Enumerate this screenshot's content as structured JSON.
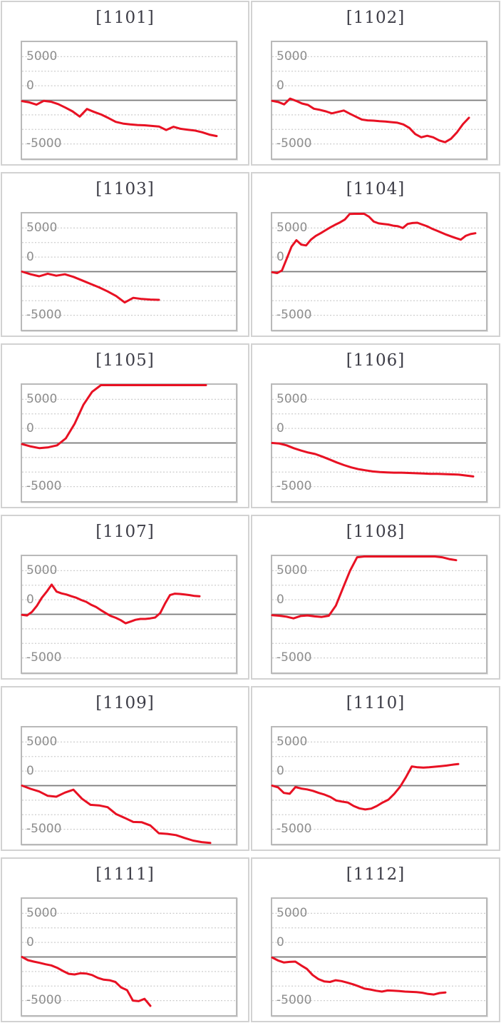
{
  "page": {
    "background": "#ffffff",
    "description": "grid of 12 machine payout line charts"
  },
  "colors": {
    "series_line": "#e81123",
    "zero_line": "#7a7a7a",
    "grid_line": "#cdcdcd",
    "plot_border": "#b9b9b9",
    "cell_border": "#d2d2d2",
    "title_text": "#3c3c46",
    "axis_label_text": "#8d8d8d"
  },
  "chart_data": {
    "type": "line",
    "common_axis": {
      "ylim": [
        -10000,
        10000
      ],
      "grid_step": 2500,
      "grid_style": "dotted",
      "zero_line": true,
      "tick_labels": [
        "5000",
        "0",
        "-5000"
      ],
      "tick_values": [
        5000,
        0,
        -5000
      ],
      "legend": "none",
      "xlabel": "",
      "ylabel": ""
    },
    "charts": [
      {
        "title": "[1101]",
        "x_end": 0.91,
        "values": [
          -150,
          -350,
          -750,
          -100,
          -250,
          -650,
          -1250,
          -1900,
          -2800,
          -1500,
          -2000,
          -2450,
          -3050,
          -3700,
          -4000,
          -4150,
          -4250,
          -4300,
          -4400,
          -4500,
          -5100,
          -4550,
          -4900,
          -5050,
          -5200,
          -5500,
          -5900,
          -6150
        ]
      },
      {
        "title": "[1102]",
        "x_end": 0.92,
        "values": [
          -100,
          -300,
          -700,
          300,
          -100,
          -550,
          -800,
          -1450,
          -1650,
          -1900,
          -2250,
          -2000,
          -1750,
          -2300,
          -2800,
          -3300,
          -3450,
          -3500,
          -3600,
          -3650,
          -3750,
          -3850,
          -4150,
          -4750,
          -5800,
          -6350,
          -6100,
          -6350,
          -6900,
          -7200,
          -6600,
          -5500,
          -4100,
          -3000
        ]
      },
      {
        "title": "[1103]",
        "x_end": 0.64,
        "values": [
          0,
          -450,
          -800,
          -350,
          -700,
          -450,
          -900,
          -1500,
          -2100,
          -2700,
          -3400,
          -4200,
          -5300,
          -4500,
          -4700,
          -4800,
          -4850
        ]
      },
      {
        "title": "[1104]",
        "x_end": 0.95,
        "values": [
          -100,
          -250,
          200,
          2250,
          4300,
          5400,
          4650,
          4500,
          5500,
          6150,
          6600,
          7100,
          7600,
          8050,
          8450,
          8950,
          9900,
          10200,
          10100,
          9950,
          9450,
          8600,
          8300,
          8200,
          8100,
          7900,
          7800,
          7500,
          8200,
          8350,
          8400,
          8100,
          7800,
          7400,
          7050,
          6700,
          6350,
          6050,
          5750,
          5500,
          6150,
          6450,
          6600
        ]
      },
      {
        "title": "[1105]",
        "x_end": 0.86,
        "values": [
          -200,
          -600,
          -900,
          -750,
          -400,
          800,
          3300,
          6550,
          8800,
          11000,
          12500,
          13000,
          12800,
          13000,
          12900,
          13000,
          13000,
          12900,
          13000,
          12950,
          13000,
          12900
        ]
      },
      {
        "title": "[1106]",
        "x_end": 0.94,
        "values": [
          0,
          -100,
          -400,
          -900,
          -1300,
          -1650,
          -1900,
          -2350,
          -2850,
          -3350,
          -3800,
          -4200,
          -4500,
          -4700,
          -4900,
          -5000,
          -5050,
          -5100,
          -5100,
          -5150,
          -5200,
          -5250,
          -5300,
          -5300,
          -5350,
          -5400,
          -5450,
          -5600,
          -5750
        ]
      },
      {
        "title": "[1107]",
        "x_end": 0.83,
        "values": [
          -100,
          -200,
          400,
          1450,
          2850,
          3900,
          5100,
          3900,
          3600,
          3400,
          3100,
          2850,
          2450,
          2150,
          1650,
          1250,
          700,
          200,
          -300,
          -600,
          -1000,
          -1550,
          -1250,
          -950,
          -800,
          -800,
          -700,
          -550,
          200,
          1850,
          3300,
          3550,
          3500,
          3400,
          3300,
          3150,
          3100
        ]
      },
      {
        "title": "[1108]",
        "x_end": 0.86,
        "values": [
          -150,
          -250,
          -400,
          -700,
          -300,
          -200,
          -350,
          -450,
          -250,
          1500,
          4500,
          7500,
          9800,
          10800,
          11000,
          11200,
          11000,
          11100,
          11050,
          11000,
          11000,
          10900,
          10700,
          10400,
          9800,
          9500,
          9300
        ]
      },
      {
        "title": "[1109]",
        "x_end": 0.88,
        "values": [
          0,
          -550,
          -1000,
          -1750,
          -1900,
          -1200,
          -700,
          -2250,
          -3300,
          -3400,
          -3700,
          -4900,
          -5550,
          -6250,
          -6300,
          -6850,
          -8200,
          -8300,
          -8500,
          -9000,
          -9450,
          -9700,
          -9850
        ]
      },
      {
        "title": "[1110]",
        "x_end": 0.87,
        "values": [
          0,
          -300,
          -1250,
          -1400,
          -250,
          -500,
          -650,
          -900,
          -1250,
          -1550,
          -1950,
          -2550,
          -2750,
          -2900,
          -3500,
          -3900,
          -4100,
          -3950,
          -3500,
          -2900,
          -2400,
          -1400,
          -200,
          1450,
          3300,
          3150,
          3100,
          3150,
          3250,
          3350,
          3450,
          3600,
          3700
        ]
      },
      {
        "title": "[1111]",
        "x_end": 0.6,
        "values": [
          0,
          -550,
          -800,
          -1000,
          -1250,
          -1450,
          -1850,
          -2400,
          -2900,
          -3000,
          -2800,
          -2850,
          -3100,
          -3600,
          -3900,
          -4000,
          -4300,
          -5250,
          -5700,
          -7500,
          -7600,
          -7200,
          -8400
        ]
      },
      {
        "title": "[1112]",
        "x_end": 0.81,
        "values": [
          -100,
          -600,
          -950,
          -850,
          -800,
          -1450,
          -2050,
          -3100,
          -3800,
          -4200,
          -4300,
          -4000,
          -4150,
          -4400,
          -4700,
          -5050,
          -5450,
          -5600,
          -5800,
          -5950,
          -5750,
          -5800,
          -5850,
          -5950,
          -6000,
          -6050,
          -6150,
          -6350,
          -6450,
          -6200,
          -6100
        ]
      }
    ]
  }
}
